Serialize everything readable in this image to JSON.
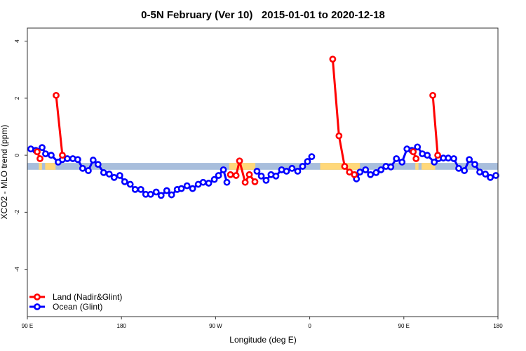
{
  "chart_data": {
    "type": "line",
    "title": "0-5N February (Ver 10)   2015-01-01 to 2020-12-18",
    "xlabel": "Longitude (deg E)",
    "ylabel": "XCO2 - MLO trend (ppm)",
    "xlim": [
      90,
      540
    ],
    "ylim": [
      -5.66,
      4.46
    ],
    "x_ticks": [
      {
        "value": 90,
        "label": "90 E"
      },
      {
        "value": 180,
        "label": "180"
      },
      {
        "value": 270,
        "label": "90 W"
      },
      {
        "value": 360,
        "label": "0"
      },
      {
        "value": 450,
        "label": "90 E"
      },
      {
        "value": 540,
        "label": "180"
      }
    ],
    "y_ticks": [
      {
        "value": 4,
        "label": "4"
      },
      {
        "value": 2,
        "label": "2"
      },
      {
        "value": 0,
        "label": "0"
      },
      {
        "value": -2,
        "label": "-2"
      },
      {
        "value": -4,
        "label": "-4"
      }
    ],
    "grid": false,
    "legend_position": "bottom-left",
    "background_band": {
      "ymin": -0.51,
      "ymax": -0.27,
      "ocean_color": "#a8bedc",
      "land_color": "#ffd87a",
      "land_ranges": [
        [
          101,
          104
        ],
        [
          107,
          117
        ],
        [
          283,
          308
        ],
        [
          370,
          408
        ],
        [
          461,
          464
        ],
        [
          467,
          480
        ]
      ]
    },
    "series": [
      {
        "name": "Land (Nadir&Glint)",
        "color": "#ff0000",
        "segments": [
          [
            [
              99.4,
              0.12
            ],
            [
              102.1,
              -0.12
            ]
          ],
          [
            [
              117.5,
              2.1
            ],
            [
              123.5,
              0.0
            ]
          ],
          [
            [
              284.2,
              -0.68
            ],
            [
              289.6,
              -0.71
            ],
            [
              292.9,
              -0.2
            ],
            [
              298.3,
              -0.95
            ],
            [
              302.3,
              -0.68
            ],
            [
              307.6,
              -0.93
            ]
          ],
          [
            [
              382.0,
              3.37
            ],
            [
              388.0,
              0.68
            ],
            [
              393.4,
              -0.39
            ],
            [
              398.0,
              -0.59
            ],
            [
              402.7,
              -0.68
            ]
          ],
          [
            [
              459.0,
              0.12
            ],
            [
              461.7,
              -0.12
            ]
          ],
          [
            [
              477.7,
              2.1
            ],
            [
              482.4,
              0.0
            ]
          ]
        ]
      },
      {
        "name": "Ocean (Glint)",
        "color": "#0000ff",
        "segments": [
          [
            [
              93.3,
              0.22
            ],
            [
              98.0,
              0.17
            ],
            [
              104.1,
              0.27
            ],
            [
              107.4,
              0.05
            ],
            [
              112.8,
              0.0
            ],
            [
              119.5,
              -0.24
            ],
            [
              123.5,
              -0.15
            ],
            [
              128.2,
              -0.12
            ],
            [
              133.5,
              -0.12
            ],
            [
              138.2,
              -0.15
            ],
            [
              142.9,
              -0.46
            ],
            [
              148.3,
              -0.54
            ],
            [
              152.9,
              -0.17
            ],
            [
              157.6,
              -0.32
            ],
            [
              163.0,
              -0.61
            ],
            [
              168.3,
              -0.66
            ],
            [
              173.0,
              -0.78
            ],
            [
              178.4,
              -0.71
            ],
            [
              183.1,
              -0.93
            ],
            [
              188.4,
              -1.02
            ],
            [
              193.1,
              -1.2
            ],
            [
              198.5,
              -1.2
            ],
            [
              203.2,
              -1.37
            ],
            [
              207.9,
              -1.37
            ],
            [
              213.2,
              -1.29
            ],
            [
              217.9,
              -1.41
            ],
            [
              223.3,
              -1.24
            ],
            [
              227.9,
              -1.39
            ],
            [
              233.3,
              -1.2
            ],
            [
              237.3,
              -1.17
            ],
            [
              242.7,
              -1.07
            ],
            [
              248.0,
              -1.17
            ],
            [
              253.4,
              -1.02
            ],
            [
              258.1,
              -0.95
            ],
            [
              263.4,
              -0.98
            ],
            [
              268.8,
              -0.85
            ],
            [
              272.8,
              -0.71
            ],
            [
              277.5,
              -0.51
            ],
            [
              280.8,
              -0.95
            ]
          ],
          [
            [
              309.6,
              -0.56
            ],
            [
              313.7,
              -0.73
            ],
            [
              318.3,
              -0.88
            ],
            [
              323.0,
              -0.68
            ],
            [
              327.7,
              -0.73
            ],
            [
              333.1,
              -0.51
            ],
            [
              337.8,
              -0.56
            ],
            [
              343.1,
              -0.46
            ],
            [
              348.5,
              -0.56
            ],
            [
              353.2,
              -0.39
            ],
            [
              357.9,
              -0.22
            ],
            [
              361.9,
              -0.05
            ]
          ],
          [
            [
              404.7,
              -0.83
            ],
            [
              408.1,
              -0.59
            ],
            [
              413.4,
              -0.51
            ],
            [
              418.1,
              -0.68
            ],
            [
              423.5,
              -0.61
            ],
            [
              428.2,
              -0.51
            ],
            [
              432.9,
              -0.39
            ],
            [
              437.6,
              -0.41
            ],
            [
              442.9,
              -0.12
            ],
            [
              448.3,
              -0.24
            ],
            [
              453.0,
              0.22
            ],
            [
              457.6,
              0.17
            ],
            [
              463.0,
              0.29
            ],
            [
              467.7,
              0.05
            ],
            [
              472.4,
              0.0
            ],
            [
              479.1,
              -0.24
            ],
            [
              483.1,
              -0.12
            ],
            [
              487.8,
              -0.1
            ],
            [
              492.5,
              -0.1
            ],
            [
              497.8,
              -0.12
            ],
            [
              502.5,
              -0.46
            ],
            [
              507.9,
              -0.54
            ],
            [
              512.6,
              -0.15
            ],
            [
              517.9,
              -0.32
            ],
            [
              522.6,
              -0.59
            ],
            [
              528.0,
              -0.66
            ],
            [
              532.7,
              -0.78
            ],
            [
              538.0,
              -0.71
            ]
          ]
        ]
      }
    ]
  }
}
